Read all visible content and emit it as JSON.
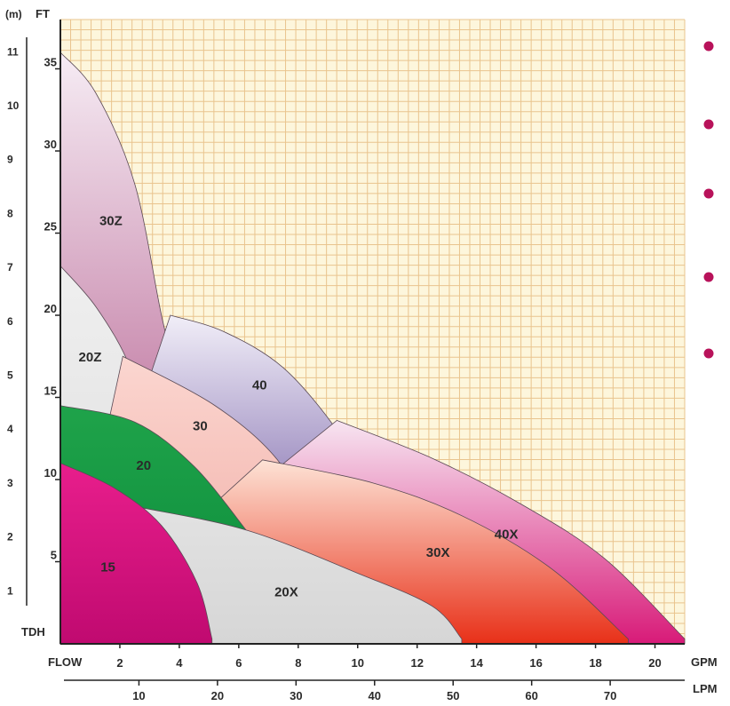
{
  "chart_data": {
    "type": "area",
    "title": "",
    "y_unit_left": "(m)",
    "y_unit_ft": "FT",
    "y_axis_title": "TDH",
    "x_axis_title": "FLOW",
    "x_unit_gpm": "GPM",
    "x_unit_lpm": "LPM",
    "gpm_ticks": [
      "2",
      "4",
      "6",
      "8",
      "10",
      "12",
      "14",
      "16",
      "18",
      "20"
    ],
    "lpm_ticks": [
      "10",
      "20",
      "30",
      "40",
      "50",
      "60",
      "70"
    ],
    "ft_ticks": [
      "5",
      "10",
      "15",
      "20",
      "25",
      "30",
      "35"
    ],
    "m_ticks": [
      "1",
      "2",
      "3",
      "4",
      "5",
      "6",
      "7",
      "8",
      "9",
      "10",
      "11"
    ],
    "xlim_gpm": [
      0,
      21
    ],
    "ylim_ft": [
      0,
      38
    ],
    "grid": true,
    "background": "#fdf6dc",
    "grid_color": "#e9c48e",
    "bullet_color": "#b8125a",
    "bullet_count": 5,
    "series": [
      {
        "name": "30Z",
        "color_top": "#f6ecf4",
        "color_bottom": "#a63f78",
        "curve": [
          [
            0,
            36
          ],
          [
            1.2,
            33.5
          ],
          [
            2.5,
            28
          ],
          [
            3.4,
            20
          ],
          [
            4,
            15.5
          ]
        ],
        "label_at": [
          1.7,
          25.5
        ]
      },
      {
        "name": "20Z",
        "color_top": "#efefef",
        "color_bottom": "#dcdcdc",
        "curve": [
          [
            0,
            23
          ],
          [
            1.2,
            20.5
          ],
          [
            2.3,
            17
          ],
          [
            2.7,
            13.3
          ]
        ],
        "label_at": [
          1.0,
          17.2
        ]
      },
      {
        "name": "40",
        "color_top": "#f1eef8",
        "color_bottom": "#4c2f8a",
        "curve": [
          [
            3.7,
            20
          ],
          [
            5.5,
            19
          ],
          [
            7.5,
            16.8
          ],
          [
            9.3,
            13
          ],
          [
            10,
            10.3
          ]
        ],
        "label_at": [
          6.7,
          15.5
        ]
      },
      {
        "name": "30",
        "color_top": "#fbd6d0",
        "color_bottom": "#f0a8a0",
        "curve": [
          [
            2.1,
            17.5
          ],
          [
            5.2,
            14.5
          ],
          [
            7.3,
            11.2
          ],
          [
            8.3,
            7.5
          ],
          [
            8.7,
            5.2
          ]
        ],
        "label_at": [
          4.7,
          13.0
        ]
      },
      {
        "name": "40X",
        "color_top": "#f7e6f2",
        "color_bottom": "#d81a78",
        "curve": [
          [
            9.3,
            13.6
          ],
          [
            12.5,
            11.3
          ],
          [
            15.5,
            8.5
          ],
          [
            18.3,
            5.2
          ],
          [
            21,
            0.3
          ]
        ],
        "label_at": [
          15.0,
          6.4
        ]
      },
      {
        "name": "30X",
        "color_top": "#fde3d6",
        "color_bottom": "#e83018",
        "curve": [
          [
            6.8,
            11.2
          ],
          [
            10.5,
            9.8
          ],
          [
            13.5,
            7.8
          ],
          [
            16.5,
            4.6
          ],
          [
            19.1,
            0.3
          ]
        ],
        "label_at": [
          12.7,
          5.3
        ]
      },
      {
        "name": "20",
        "color_top": "#1fa34a",
        "color_bottom": "#0a8a3a",
        "curve": [
          [
            0,
            14.5
          ],
          [
            2.5,
            13.5
          ],
          [
            4.5,
            10.8
          ],
          [
            6.3,
            6.8
          ]
        ],
        "label_at": [
          2.8,
          10.6
        ]
      },
      {
        "name": "20X",
        "color_top": "#e2e2e2",
        "color_bottom": "#d6d6d6",
        "curve": [
          [
            2.7,
            8.3
          ],
          [
            6.3,
            6.9
          ],
          [
            10,
            4.3
          ],
          [
            12.5,
            2.3
          ],
          [
            13.5,
            0.3
          ]
        ],
        "label_at": [
          7.6,
          2.9
        ]
      },
      {
        "name": "15",
        "color_top": "#e81e8c",
        "color_bottom": "#c00a70",
        "curve": [
          [
            0,
            11
          ],
          [
            1.8,
            9.5
          ],
          [
            3.4,
            7.2
          ],
          [
            4.6,
            3.7
          ],
          [
            5.1,
            0.3
          ]
        ],
        "label_at": [
          1.6,
          4.4
        ]
      }
    ]
  }
}
